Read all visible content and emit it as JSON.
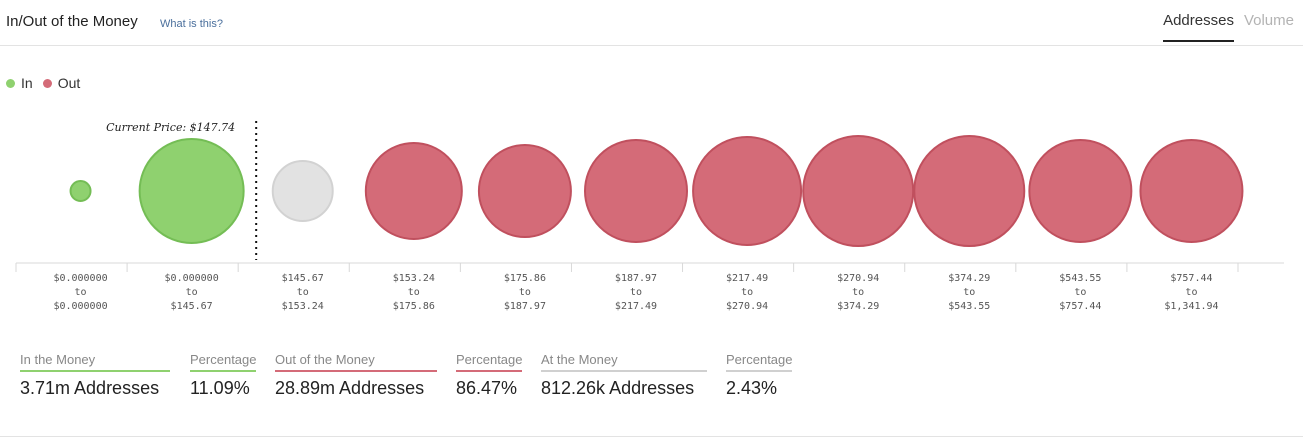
{
  "header": {
    "title": "In/Out of the Money",
    "help_link": "What is this?",
    "tabs": [
      {
        "label": "Addresses",
        "active": true
      },
      {
        "label": "Volume",
        "active": false
      }
    ]
  },
  "colors": {
    "in": "#8fd16f",
    "out": "#d46b78",
    "at": "#e2e2e2",
    "in_stroke": "#74bd55",
    "out_stroke": "#c0505e",
    "at_stroke": "#d2d2d2"
  },
  "chart_data": {
    "type": "bubble",
    "legend": [
      {
        "name": "In",
        "color": "#8fd16f"
      },
      {
        "name": "Out",
        "color": "#d46b78"
      }
    ],
    "legend_position": "top-left",
    "current_price_label": "Current Price: $147.74",
    "current_price_after_bucket": 1,
    "buckets": [
      {
        "from": "$0.000000",
        "to": "$0.000000",
        "status": "in",
        "size": 10
      },
      {
        "from": "$0.000000",
        "to": "$145.67",
        "status": "in",
        "size": 52
      },
      {
        "from": "$145.67",
        "to": "$153.24",
        "status": "at",
        "size": 30
      },
      {
        "from": "$153.24",
        "to": "$175.86",
        "status": "out",
        "size": 48
      },
      {
        "from": "$175.86",
        "to": "$187.97",
        "status": "out",
        "size": 46
      },
      {
        "from": "$187.97",
        "to": "$217.49",
        "status": "out",
        "size": 51
      },
      {
        "from": "$217.49",
        "to": "$270.94",
        "status": "out",
        "size": 54
      },
      {
        "from": "$270.94",
        "to": "$374.29",
        "status": "out",
        "size": 55
      },
      {
        "from": "$374.29",
        "to": "$543.55",
        "status": "out",
        "size": 55
      },
      {
        "from": "$543.55",
        "to": "$757.44",
        "status": "out",
        "size": 51
      },
      {
        "from": "$757.44",
        "to": "$1,341.94",
        "status": "out",
        "size": 51
      }
    ],
    "range_word": "to"
  },
  "stats": [
    {
      "label": "In the Money",
      "value": "3.71m Addresses",
      "color": "#8fd16f"
    },
    {
      "label": "Percentage",
      "value": "11.09%",
      "color": "#8fd16f"
    },
    {
      "label": "Out of the Money",
      "value": "28.89m Addresses",
      "color": "#d46b78"
    },
    {
      "label": "Percentage",
      "value": "86.47%",
      "color": "#d46b78"
    },
    {
      "label": "At the Money",
      "value": "812.26k Addresses",
      "color": "#d0d0d0"
    },
    {
      "label": "Percentage",
      "value": "2.43%",
      "color": "#d0d0d0"
    }
  ]
}
